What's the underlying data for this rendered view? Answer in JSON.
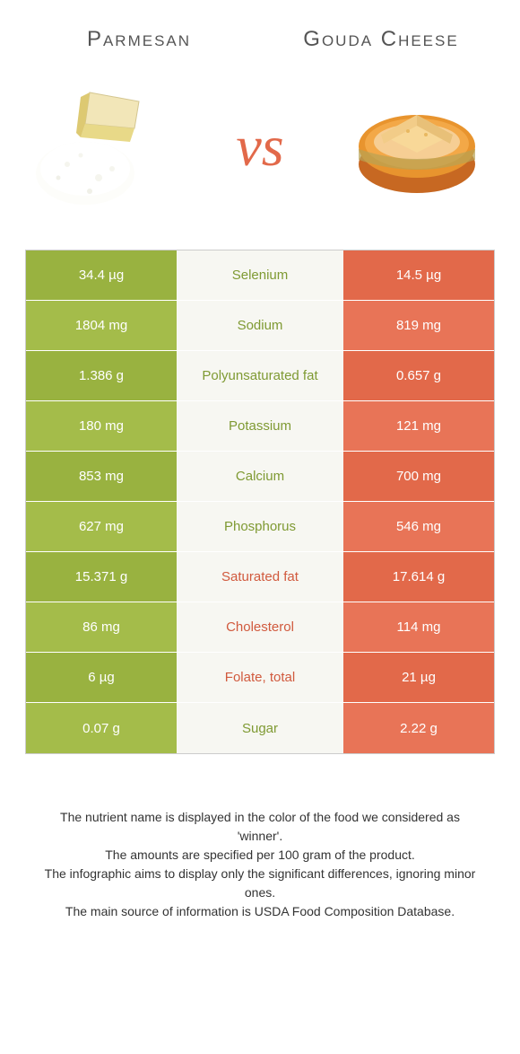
{
  "colors": {
    "left": "#99b240",
    "left_alt": "#a4bc4a",
    "right": "#e2694a",
    "right_alt": "#e87457",
    "mid_bg": "#f7f7f2",
    "label_left": "#7f9a33",
    "label_right": "#d15a3e",
    "title": "#555555"
  },
  "foods": {
    "left": {
      "name": "Parmesan"
    },
    "right": {
      "name": "Gouda Cheese"
    }
  },
  "vs": "vs",
  "rows": [
    {
      "left": "34.4 µg",
      "label": "Selenium",
      "right": "14.5 µg",
      "winner": "left"
    },
    {
      "left": "1804 mg",
      "label": "Sodium",
      "right": "819 mg",
      "winner": "left"
    },
    {
      "left": "1.386 g",
      "label": "Polyunsaturated fat",
      "right": "0.657 g",
      "winner": "left"
    },
    {
      "left": "180 mg",
      "label": "Potassium",
      "right": "121 mg",
      "winner": "left"
    },
    {
      "left": "853 mg",
      "label": "Calcium",
      "right": "700 mg",
      "winner": "left"
    },
    {
      "left": "627 mg",
      "label": "Phosphorus",
      "right": "546 mg",
      "winner": "left"
    },
    {
      "left": "15.371 g",
      "label": "Saturated fat",
      "right": "17.614 g",
      "winner": "right"
    },
    {
      "left": "86 mg",
      "label": "Cholesterol",
      "right": "114 mg",
      "winner": "right"
    },
    {
      "left": "6 µg",
      "label": "Folate, total",
      "right": "21 µg",
      "winner": "right"
    },
    {
      "left": "0.07 g",
      "label": "Sugar",
      "right": "2.22 g",
      "winner": "left"
    }
  ],
  "footer": [
    "The nutrient name is displayed in the color of the food we considered as 'winner'.",
    "The amounts are specified per 100 gram of the product.",
    "The infographic aims to display only the significant differences, ignoring minor ones.",
    "The main source of information is USDA Food Composition Database."
  ]
}
